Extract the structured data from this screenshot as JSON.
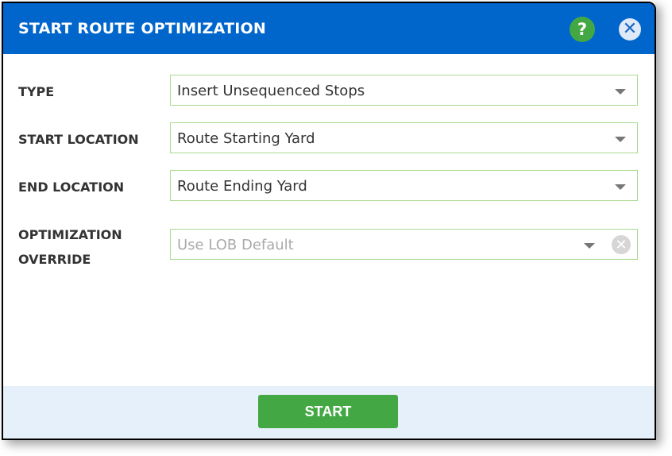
{
  "dialog": {
    "title": "START ROUTE OPTIMIZATION",
    "help_icon": "?",
    "close_icon": "✕"
  },
  "fields": [
    {
      "label": "TYPE",
      "value": "Insert Unsequenced Stops"
    },
    {
      "label": "START LOCATION",
      "value": "Route Starting Yard"
    },
    {
      "label": "END LOCATION",
      "value": "Route Ending Yard"
    },
    {
      "label_line1": "OPTIMIZATION",
      "label_line2": "OVERRIDE",
      "placeholder": "Use LOB Default"
    }
  ],
  "footer": {
    "start_label": "START"
  },
  "colors": {
    "header": "#0066cc",
    "start_button": "#43a843",
    "help_icon": "#43a843",
    "footer": "#e6f0fa",
    "field_border": "#a9dc91"
  }
}
